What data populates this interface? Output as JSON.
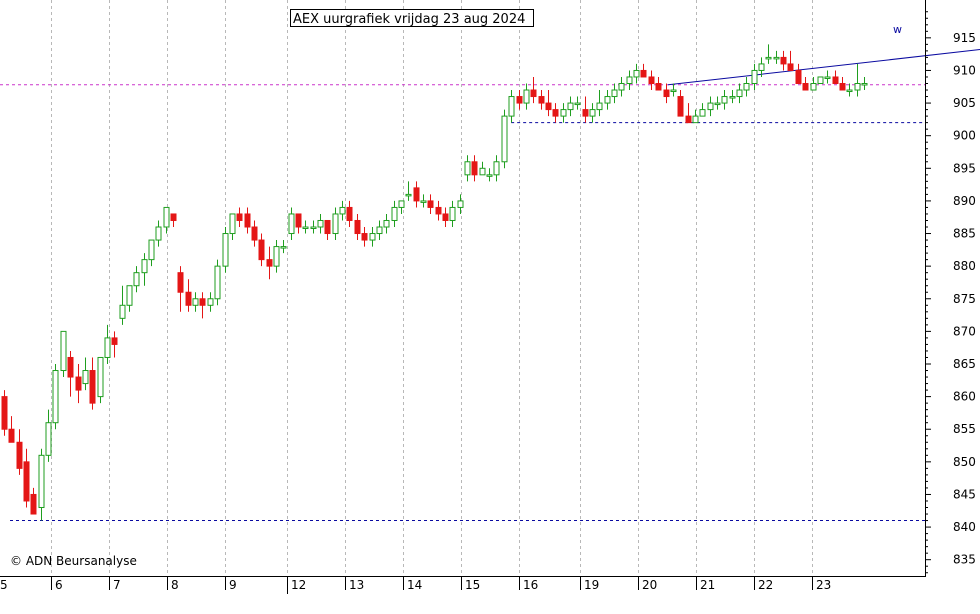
{
  "chart_data": {
    "type": "candlestick",
    "title": "AEX uurgrafiek vrijdag 23 aug 2024",
    "copyright": "© ADN Beursanalyse",
    "trendline_label": "w",
    "x_labels": [
      "5",
      "6",
      "7",
      "8",
      "9",
      "12",
      "13",
      "14",
      "15",
      "16",
      "19",
      "20",
      "21",
      "22",
      "23"
    ],
    "y_ticks": [
      835,
      840,
      845,
      850,
      855,
      860,
      865,
      870,
      875,
      880,
      885,
      890,
      895,
      900,
      905,
      910,
      915
    ],
    "ylim": [
      832.5,
      920.8
    ],
    "grid": "vertical dotted",
    "colors": {
      "up": "#1f9e1f",
      "down": "#e41616",
      "support": "#0a0aa0",
      "resistance": "#cc33cc",
      "trend": "#0a0aa0"
    },
    "reference_lines": {
      "resistance": 907.8,
      "support_high": 902.0,
      "support_low": 841.0
    },
    "trendline": {
      "from": [
        89,
        907.8
      ],
      "to": [
        154,
        916.0
      ]
    },
    "candles": [
      [
        0,
        860,
        861,
        854,
        855
      ],
      [
        1,
        855,
        857,
        853,
        853
      ],
      [
        2,
        853,
        855,
        848,
        849
      ],
      [
        3,
        850,
        852,
        843,
        844
      ],
      [
        4,
        845,
        846,
        842,
        842
      ],
      [
        5,
        843,
        852,
        841,
        851
      ],
      [
        6,
        851,
        858,
        850,
        856
      ],
      [
        7,
        856,
        865,
        855,
        864
      ],
      [
        8,
        864,
        870,
        863,
        870
      ],
      [
        9,
        866,
        867,
        860,
        863
      ],
      [
        10,
        863,
        865,
        859,
        861
      ],
      [
        11,
        862,
        866,
        861,
        864
      ],
      [
        12,
        864,
        866,
        858,
        859
      ],
      [
        13,
        860,
        866,
        859,
        866
      ],
      [
        14,
        866,
        871,
        865,
        869
      ],
      [
        15,
        869,
        870,
        866,
        868
      ],
      [
        16,
        872,
        877,
        871,
        874
      ],
      [
        17,
        874,
        877,
        873,
        877
      ],
      [
        18,
        877,
        880,
        876,
        879
      ],
      [
        19,
        879,
        882,
        877,
        881
      ],
      [
        20,
        881,
        884,
        880,
        884
      ],
      [
        21,
        884,
        887,
        883,
        886
      ],
      [
        22,
        886,
        889,
        885,
        889
      ],
      [
        23,
        888,
        888,
        886,
        887
      ],
      [
        24,
        879,
        880,
        873,
        876
      ],
      [
        25,
        876,
        878,
        873,
        874
      ],
      [
        26,
        874,
        876,
        873,
        875
      ],
      [
        27,
        875,
        876,
        872,
        874
      ],
      [
        28,
        874,
        876,
        873,
        875
      ],
      [
        29,
        875,
        881,
        874,
        880
      ],
      [
        30,
        880,
        886,
        879,
        885
      ],
      [
        31,
        885,
        888,
        884,
        888
      ],
      [
        32,
        888,
        889,
        886,
        887
      ],
      [
        33,
        888,
        889,
        885,
        886
      ],
      [
        34,
        886,
        887,
        883,
        884
      ],
      [
        35,
        884,
        885,
        880,
        881
      ],
      [
        36,
        881,
        883,
        878,
        880
      ],
      [
        37,
        880,
        884,
        879,
        883
      ],
      [
        38,
        883,
        884,
        882,
        883
      ],
      [
        39,
        885,
        889,
        884,
        888
      ],
      [
        40,
        888,
        888,
        885,
        886
      ],
      [
        41,
        886,
        887,
        885,
        886
      ],
      [
        42,
        886,
        887,
        885,
        886
      ],
      [
        43,
        886,
        888,
        885,
        887
      ],
      [
        44,
        887,
        887,
        884,
        885
      ],
      [
        45,
        885,
        889,
        884,
        888
      ],
      [
        46,
        888,
        890,
        887,
        889
      ],
      [
        47,
        889,
        890,
        886,
        887
      ],
      [
        48,
        887,
        888,
        884,
        885
      ],
      [
        49,
        885,
        886,
        883,
        884
      ],
      [
        50,
        884,
        886,
        883,
        885
      ],
      [
        51,
        885,
        887,
        884,
        886
      ],
      [
        52,
        886,
        888,
        885,
        887
      ],
      [
        53,
        887,
        890,
        886,
        889
      ],
      [
        54,
        889,
        890,
        888,
        890
      ],
      [
        55,
        891,
        893,
        890,
        891
      ],
      [
        56,
        892,
        893,
        889,
        890
      ],
      [
        57,
        890,
        891,
        889,
        890
      ],
      [
        58,
        890,
        891,
        888,
        889
      ],
      [
        59,
        889,
        890,
        887,
        888
      ],
      [
        60,
        888,
        889,
        886,
        887
      ],
      [
        61,
        887,
        890,
        886,
        889
      ],
      [
        62,
        889,
        891,
        888,
        890
      ],
      [
        63,
        894,
        897,
        893,
        896
      ],
      [
        64,
        896,
        897,
        893,
        894
      ],
      [
        65,
        894,
        896,
        894,
        895
      ],
      [
        66,
        894,
        895,
        893,
        894
      ],
      [
        67,
        894,
        897,
        893,
        896
      ],
      [
        68,
        896,
        904,
        895,
        903
      ],
      [
        69,
        903,
        907,
        902,
        906
      ],
      [
        70,
        906,
        907,
        904,
        905
      ],
      [
        71,
        905,
        908,
        904,
        907
      ],
      [
        72,
        907,
        909,
        905,
        906
      ],
      [
        73,
        906,
        907,
        904,
        905
      ],
      [
        74,
        905,
        907,
        903,
        904
      ],
      [
        75,
        904,
        905,
        902,
        903
      ],
      [
        76,
        903,
        905,
        902,
        904
      ],
      [
        77,
        904,
        906,
        903,
        905
      ],
      [
        78,
        905,
        906,
        904,
        905
      ],
      [
        79,
        904,
        906,
        902,
        903
      ],
      [
        80,
        903,
        905,
        902,
        904
      ],
      [
        81,
        904,
        907,
        903,
        905
      ],
      [
        82,
        905,
        907,
        904,
        906
      ],
      [
        83,
        906,
        908,
        905,
        907
      ],
      [
        84,
        907,
        909,
        906,
        908
      ],
      [
        85,
        908,
        910,
        907,
        909
      ],
      [
        86,
        909,
        911,
        908,
        910
      ],
      [
        87,
        910,
        911,
        909,
        909
      ],
      [
        88,
        909,
        910,
        907,
        908
      ],
      [
        89,
        908,
        909,
        907,
        907
      ],
      [
        90,
        907,
        908,
        905,
        906
      ],
      [
        91,
        907,
        908,
        906,
        907
      ],
      [
        92,
        906,
        907,
        903,
        903
      ],
      [
        93,
        903,
        905,
        902,
        902
      ],
      [
        94,
        902,
        904,
        902,
        903
      ],
      [
        95,
        903,
        905,
        903,
        904
      ],
      [
        96,
        904,
        906,
        903,
        905
      ],
      [
        97,
        905,
        906,
        904,
        905
      ],
      [
        98,
        905,
        907,
        904,
        906
      ],
      [
        99,
        906,
        907,
        905,
        906
      ],
      [
        100,
        906,
        908,
        905,
        907
      ],
      [
        101,
        907,
        909,
        906,
        908
      ],
      [
        102,
        908,
        911,
        907,
        910
      ],
      [
        103,
        910,
        912,
        909,
        911
      ],
      [
        104,
        912,
        914,
        911,
        912
      ],
      [
        105,
        912,
        913,
        911,
        912
      ],
      [
        106,
        912,
        913,
        910,
        911
      ],
      [
        107,
        911,
        913,
        910,
        910
      ],
      [
        108,
        910,
        911,
        908,
        908
      ],
      [
        109,
        908,
        909,
        907,
        907
      ],
      [
        110,
        907,
        909,
        907,
        908
      ],
      [
        111,
        908,
        909,
        908,
        909
      ],
      [
        112,
        909,
        910,
        908,
        909
      ],
      [
        113,
        909,
        910,
        908,
        908
      ],
      [
        114,
        908,
        909,
        907,
        907
      ],
      [
        115,
        907,
        908,
        906,
        907
      ],
      [
        116,
        907,
        911,
        906,
        908
      ],
      [
        117,
        908,
        909,
        907,
        908
      ]
    ]
  }
}
